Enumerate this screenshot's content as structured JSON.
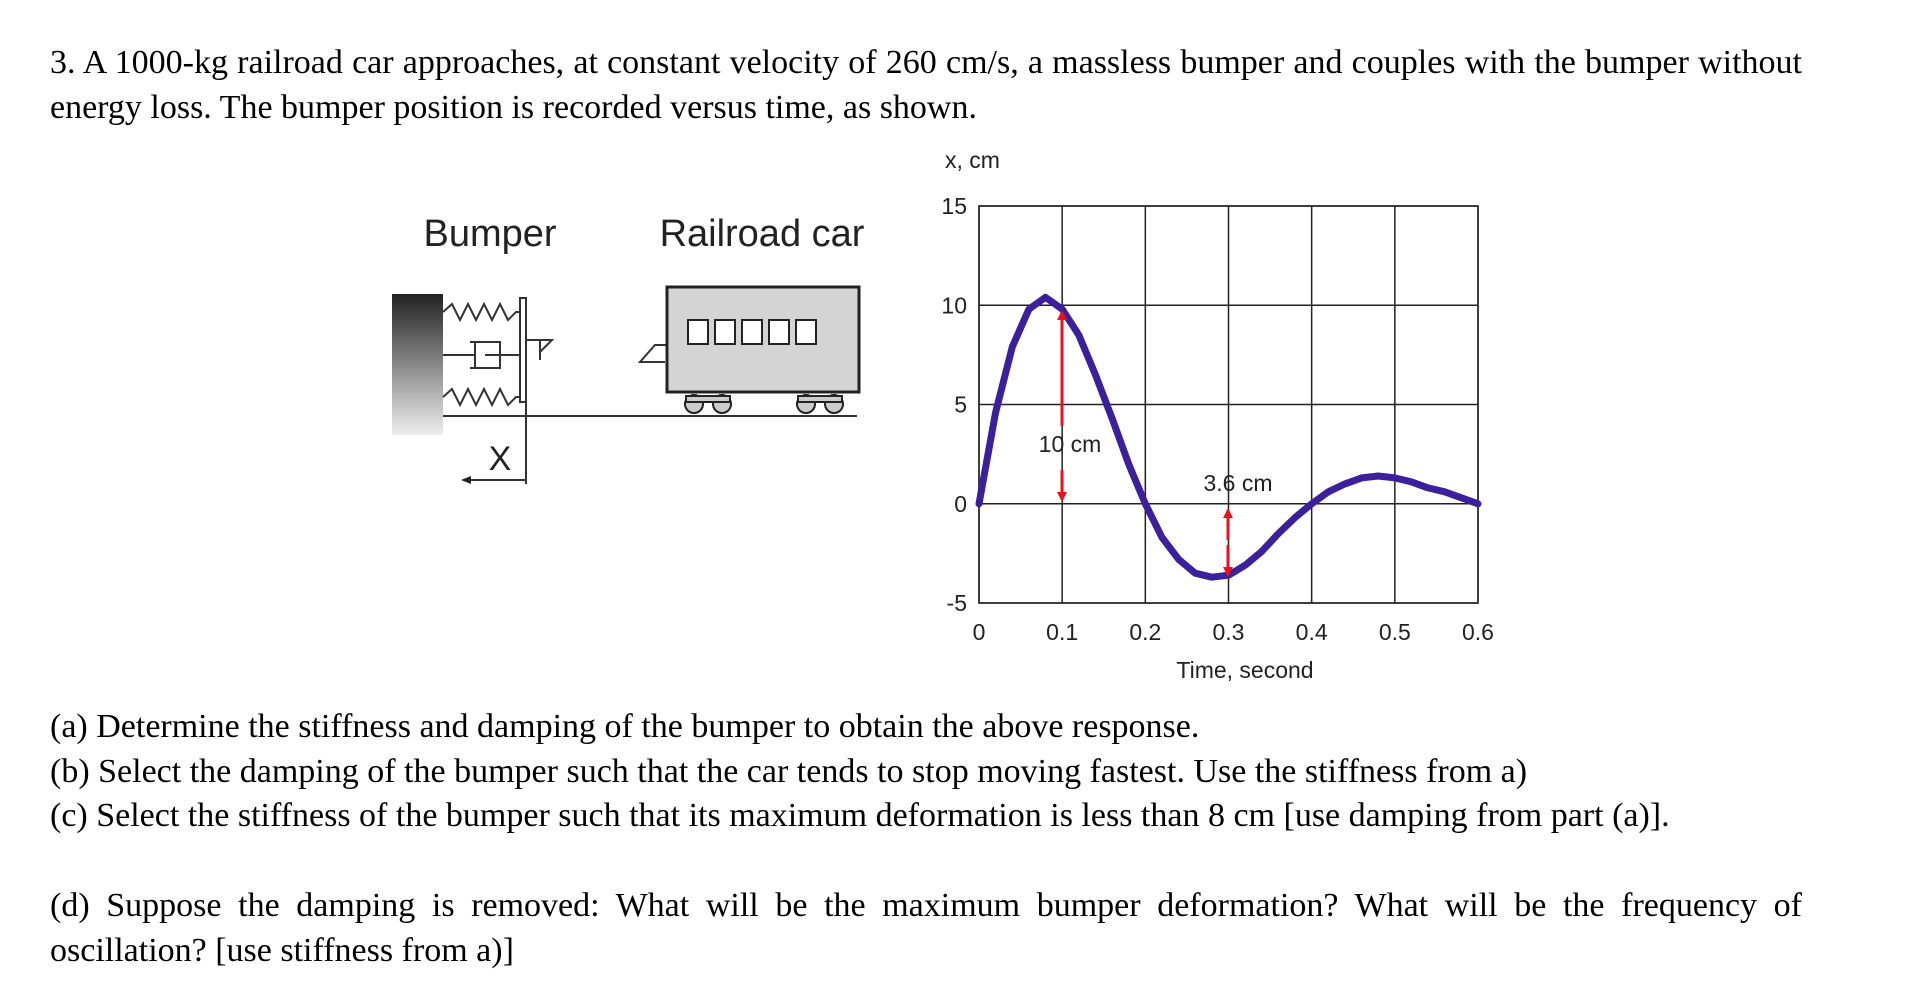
{
  "problem": {
    "intro": "3. A 1000-kg railroad car approaches, at constant velocity of 260 cm/s, a massless bumper and couples with the bumper without energy loss. The bumper position is recorded versus time, as shown.",
    "parts": [
      "(a) Determine the stiffness and damping of the bumper to obtain the above response.",
      "(b) Select the damping of the bumper such that the car tends to stop moving fastest. Use the stiffness from a)",
      "(c) Select the stiffness of the bumper such that its maximum deformation is less than 8 cm [use damping from part (a)].",
      "(d) Suppose the damping is removed: What will be the maximum bumper deformation? What will be the frequency of oscillation? [use stiffness from a)]"
    ]
  },
  "diagram": {
    "bumper_label": "Bumper",
    "car_label": "Railroad car",
    "x_label": "X"
  },
  "chart_data": {
    "type": "line",
    "x_label": "Time, second",
    "y_label": "x, cm",
    "x": [
      0,
      0.02,
      0.04,
      0.06,
      0.08,
      0.1,
      0.12,
      0.14,
      0.16,
      0.18,
      0.2,
      0.22,
      0.24,
      0.26,
      0.28,
      0.3,
      0.32,
      0.34,
      0.36,
      0.38,
      0.4,
      0.42,
      0.44,
      0.46,
      0.48,
      0.5,
      0.52,
      0.54,
      0.56,
      0.58,
      0.6
    ],
    "series": [
      {
        "color": "#3b1f9c",
        "values": [
          0,
          4.6,
          7.9,
          9.8,
          10.4,
          9.8,
          8.5,
          6.5,
          4.3,
          2.0,
          0,
          -1.7,
          -2.8,
          -3.5,
          -3.7,
          -3.6,
          -3.1,
          -2.4,
          -1.5,
          -0.7,
          0,
          0.6,
          1.0,
          1.3,
          1.4,
          1.3,
          1.1,
          0.8,
          0.6,
          0.3,
          0
        ]
      }
    ],
    "xlim": [
      0,
      0.6
    ],
    "ylim": [
      -5,
      15
    ],
    "xticks": [
      0,
      0.1,
      0.2,
      0.3,
      0.4,
      0.5,
      0.6
    ],
    "yticks": [
      -5,
      0,
      5,
      10,
      15
    ],
    "grid": true,
    "annotations": [
      "10 cm",
      "3.6 cm"
    ]
  }
}
